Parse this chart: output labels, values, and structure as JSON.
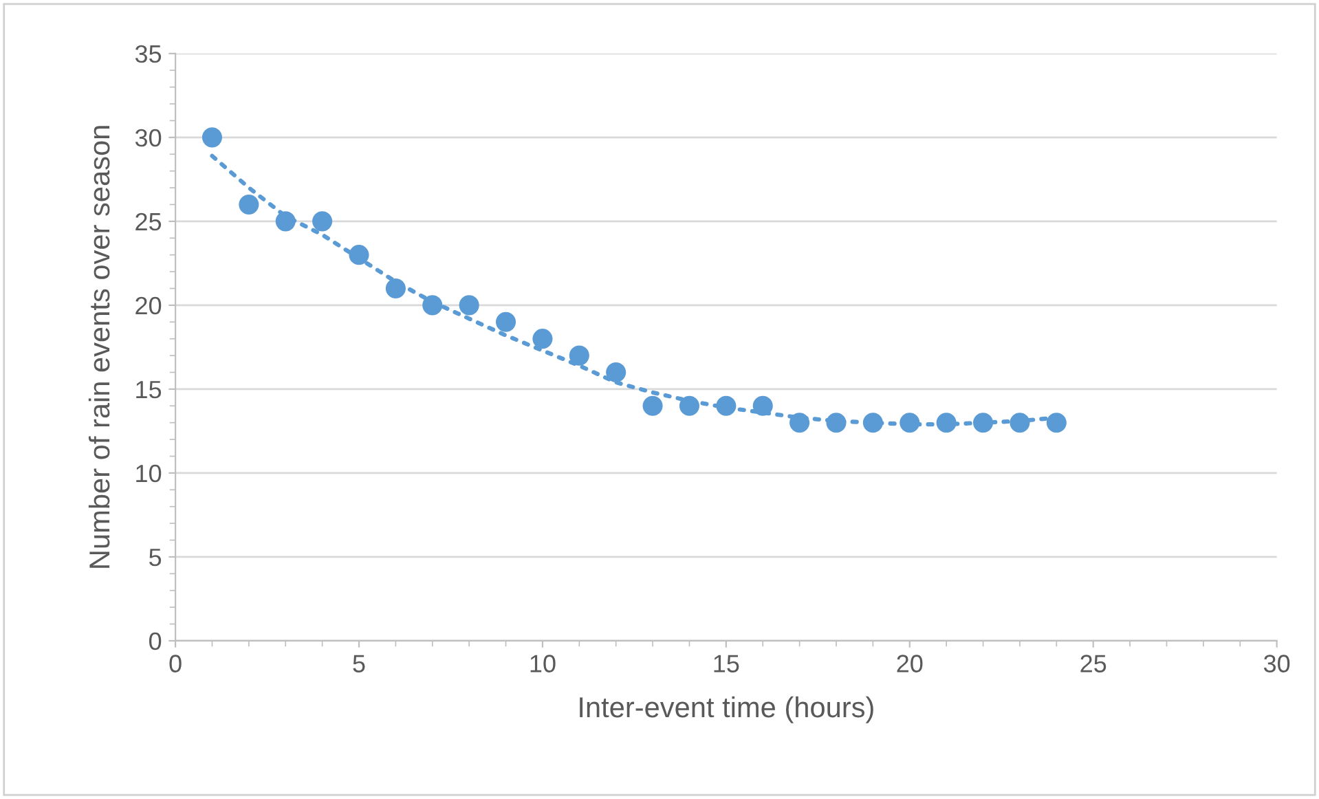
{
  "chart_data": {
    "type": "scatter",
    "xlabel": "Inter-event time (hours)",
    "ylabel": "Number of rain events over season",
    "xlim": [
      0,
      30
    ],
    "xticks": [
      0,
      5,
      10,
      15,
      20,
      25,
      30
    ],
    "ylim": [
      0,
      35
    ],
    "yticks": [
      0,
      5,
      10,
      15,
      20,
      25,
      30,
      35
    ],
    "grid": "y",
    "x": [
      1,
      2,
      3,
      4,
      5,
      6,
      7,
      8,
      9,
      10,
      11,
      12,
      13,
      14,
      15,
      16,
      17,
      18,
      19,
      20,
      21,
      22,
      23,
      24
    ],
    "series": [
      {
        "marker": "circle",
        "color": "#5b9bd5",
        "values": [
          30,
          26,
          25,
          25,
          23,
          21,
          20,
          20,
          19,
          18,
          17,
          16,
          14,
          14,
          14,
          14,
          13,
          13,
          13,
          13,
          13,
          13,
          13,
          13
        ]
      },
      {
        "type": "line",
        "marker": "none",
        "line_style": "dotted",
        "color": "#5b9bd5",
        "x": [
          1,
          2,
          3,
          4,
          5,
          6,
          7,
          8,
          9,
          10,
          11,
          12,
          13,
          14,
          15,
          16,
          17,
          18,
          19,
          20,
          21,
          22,
          23,
          24
        ],
        "values": [
          28.9,
          27.0,
          25.3,
          24.2,
          22.8,
          21.4,
          20.2,
          19.2,
          18.2,
          17.3,
          16.4,
          15.4,
          14.8,
          14.3,
          13.9,
          13.6,
          13.3,
          13.1,
          13.0,
          12.9,
          12.9,
          13.0,
          13.1,
          13.3
        ]
      }
    ]
  }
}
